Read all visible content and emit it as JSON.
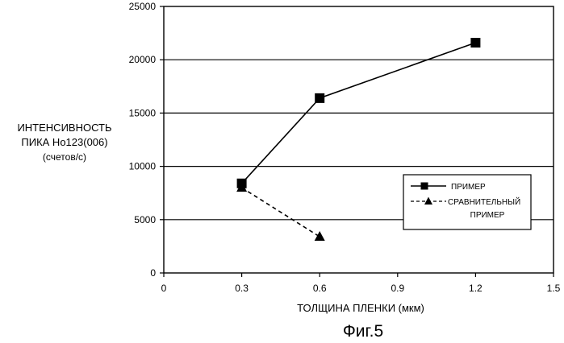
{
  "caption": "Фиг.5",
  "chart_data": {
    "type": "line",
    "ylabel_lines": [
      "ИНТЕНСИВНОСТЬ",
      "ПИКА Ho123(006)",
      "(счетов/с)"
    ],
    "xlabel": "ТОЛЩИНА ПЛЕНКИ (мкм)",
    "xlim": [
      0,
      1.5
    ],
    "ylim": [
      0,
      25000
    ],
    "x_ticks": [
      0,
      0.3,
      0.6,
      0.9,
      1.2,
      1.5
    ],
    "x_tick_labels": [
      "0",
      "0.3",
      "0.6",
      "0.9",
      "1.2",
      "1.5"
    ],
    "y_ticks": [
      0,
      5000,
      10000,
      15000,
      20000,
      25000
    ],
    "y_tick_labels": [
      "0",
      "5000",
      "10000",
      "15000",
      "20000",
      "25000"
    ],
    "grid": "horizontal",
    "legend_position": "right",
    "series": [
      {
        "name": "ПРИМЕР",
        "marker": "square",
        "line_style": "solid",
        "color": "#000000",
        "x": [
          0.3,
          0.6,
          1.2
        ],
        "y": [
          8400,
          16400,
          21600
        ]
      },
      {
        "name_lines": [
          "СРАВНИТЕЛЬНЫЙ",
          "ПРИМЕР"
        ],
        "marker": "triangle",
        "line_style": "dashed",
        "color": "#000000",
        "x": [
          0.3,
          0.6
        ],
        "y": [
          8000,
          3400
        ]
      }
    ]
  }
}
